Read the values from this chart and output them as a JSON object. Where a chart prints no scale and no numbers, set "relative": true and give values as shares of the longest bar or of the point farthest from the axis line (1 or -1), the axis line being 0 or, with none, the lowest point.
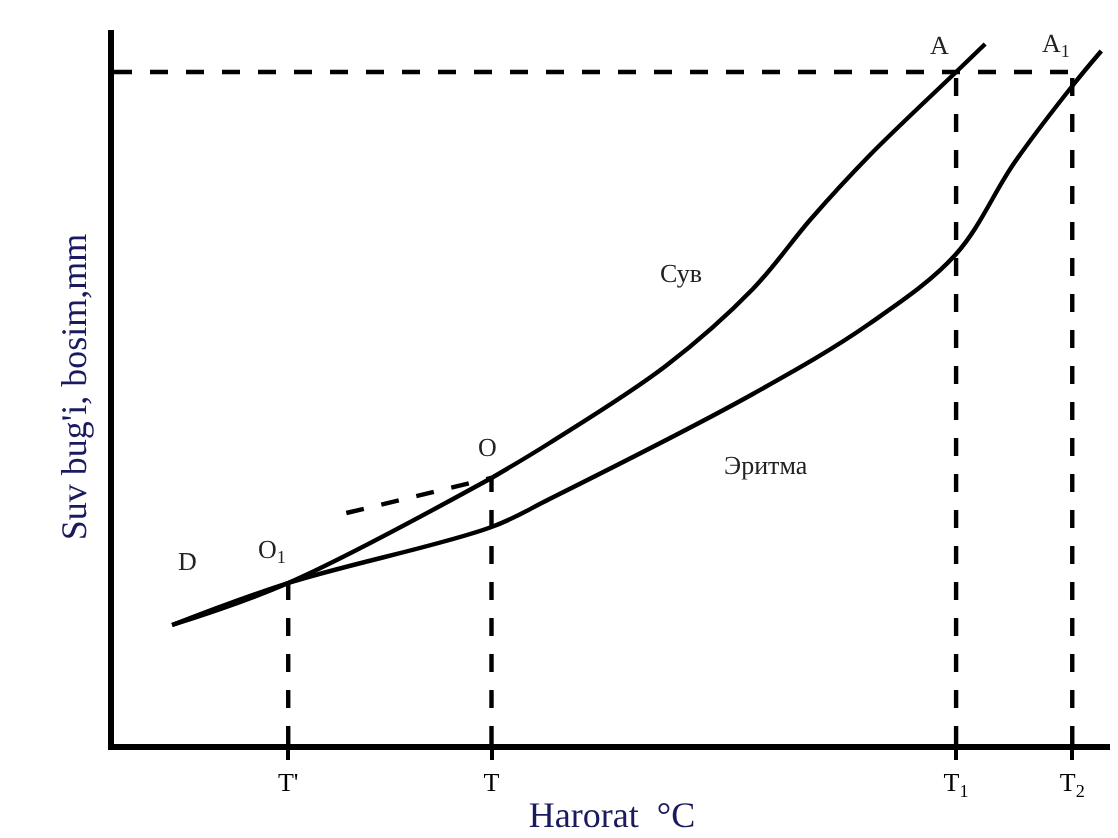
{
  "chart_data": {
    "type": "line",
    "relative": true,
    "xlabel": "Harorat  °C",
    "ylabel": "Suv bug'i, bosim,mm",
    "categories": [
      null,
      null,
      null,
      null,
      null,
      null,
      "T'",
      null,
      null,
      null,
      null,
      null,
      null,
      "T",
      null,
      null,
      null,
      null,
      null,
      null,
      null,
      null,
      null,
      null,
      null,
      null,
      null,
      null,
      null,
      "T$_{1}$",
      null,
      null,
      null,
      "T$_{2}$",
      null
    ],
    "tick_labels": "x",
    "marker": "none",
    "series": [
      {
        "color": "#000000",
        "line_style": "solid",
        "values": [
          null,
          null,
          0.17,
          null,
          null,
          null,
          0.23,
          null,
          null,
          null,
          null,
          null,
          null,
          0.38,
          null,
          null,
          null,
          null,
          null,
          null,
          null,
          null,
          null,
          null,
          null,
          null,
          null,
          null,
          null,
          null,
          null,
          null,
          null,
          null,
          null
        ]
      },
      {
        "color": "#000000",
        "line_style": "dashed",
        "values": [
          null,
          null,
          null,
          null,
          null,
          null,
          null,
          null,
          0.33,
          null,
          null,
          null,
          null,
          0.38,
          null,
          null,
          null,
          null,
          null,
          null,
          null,
          null,
          null,
          null,
          null,
          null,
          null,
          null,
          null,
          null,
          null,
          null,
          null,
          null,
          null
        ]
      },
      {
        "color": "#000000",
        "line_style": "solid",
        "values": [
          null,
          null,
          null,
          null,
          null,
          null,
          null,
          null,
          null,
          null,
          null,
          null,
          null,
          0.38,
          null,
          0.43,
          null,
          null,
          null,
          0.54,
          null,
          null,
          0.65,
          null,
          0.75,
          null,
          0.84,
          null,
          null,
          0.96,
          1.0,
          null,
          null,
          null,
          null
        ]
      },
      {
        "color": "#000000",
        "line_style": "solid",
        "values": [
          null,
          null,
          0.17,
          null,
          null,
          null,
          0.23,
          null,
          null,
          null,
          null,
          null,
          null,
          0.31,
          null,
          0.35,
          null,
          null,
          null,
          null,
          null,
          null,
          0.5,
          null,
          null,
          null,
          0.6,
          null,
          null,
          0.7,
          null,
          0.83,
          null,
          0.94,
          0.99
        ]
      },
      {
        "color": "#000000",
        "line_style": "dashed",
        "values": [
          0.96,
          null,
          null,
          null,
          null,
          null,
          null,
          null,
          null,
          null,
          null,
          null,
          null,
          null,
          null,
          null,
          null,
          null,
          null,
          null,
          null,
          null,
          null,
          null,
          null,
          null,
          null,
          null,
          null,
          null,
          null,
          null,
          null,
          0.96,
          null
        ]
      },
      {
        "color": "#000000",
        "line_style": "dashed",
        "x": [
          "T'",
          "T'"
        ],
        "values": [
          0.0,
          0.23
        ]
      },
      {
        "color": "#000000",
        "line_style": "dashed",
        "x": [
          "T",
          "T"
        ],
        "values": [
          0.0,
          0.38
        ]
      },
      {
        "color": "#000000",
        "line_style": "dashed",
        "x": [
          "T$_{1}$",
          "T$_{1}$"
        ],
        "values": [
          0.0,
          0.96
        ]
      },
      {
        "color": "#000000",
        "line_style": "dashed",
        "x": [
          "T$_{2}$",
          "T$_{2}$"
        ],
        "values": [
          0.0,
          0.96
        ]
      }
    ],
    "annotations": [
      {
        "text": "A",
        "x": "T$_{1}$",
        "y": 0.96
      },
      {
        "text": "A$_{1}$",
        "x": "T$_{2}$",
        "y": 0.96
      },
      {
        "text": "O",
        "x": "T",
        "y": 0.38
      },
      {
        "text": "O$_{1}$",
        "x": "T'",
        "y": 0.23
      },
      "D",
      "Сув",
      "Эритма"
    ]
  }
}
